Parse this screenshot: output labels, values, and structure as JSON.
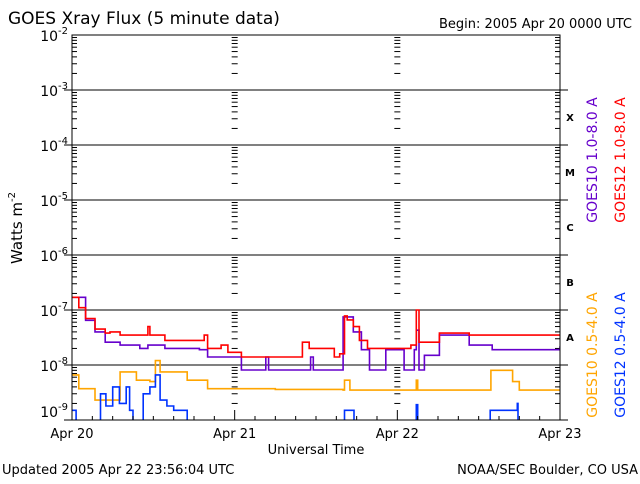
{
  "chart_data": {
    "type": "line",
    "title": "GOES Xray Flux (5 minute data)",
    "begin_label": "Begin:  2005 Apr 20 0000 UTC",
    "xlabel": "Universal Time",
    "ylabel_base": "Watts m",
    "ylabel_exp": "-2",
    "y_scale": "log",
    "ylim": [
      1e-09,
      0.01
    ],
    "xlim_hours": [
      0,
      72
    ],
    "y_ticks": [
      {
        "exp": "-2",
        "value": 0.01
      },
      {
        "exp": "-3",
        "value": 0.001
      },
      {
        "exp": "-4",
        "value": 0.0001
      },
      {
        "exp": "-5",
        "value": 1e-05
      },
      {
        "exp": "-6",
        "value": 1e-06
      },
      {
        "exp": "-7",
        "value": 1e-07
      },
      {
        "exp": "-8",
        "value": 1e-08
      },
      {
        "exp": "-9",
        "value": 1e-09
      }
    ],
    "x_ticks": [
      {
        "label": "Apr 20",
        "hour": 0
      },
      {
        "label": "Apr 21",
        "hour": 24
      },
      {
        "label": "Apr 22",
        "hour": 48
      },
      {
        "label": "Apr 23",
        "hour": 72
      }
    ],
    "flare_classes": [
      {
        "label": "X",
        "value": 0.00032
      },
      {
        "label": "M",
        "value": 3.2e-05
      },
      {
        "label": "C",
        "value": 3.2e-06
      },
      {
        "label": "B",
        "value": 3.2e-07
      },
      {
        "label": "A",
        "value": 3.2e-08
      }
    ],
    "grid": "horizontal lines at each decade",
    "legend_placement": "right, rotated",
    "series": [
      {
        "name": "GOES10 1.0-8.0 A",
        "color": "#6600cc",
        "points": [
          [
            0,
            1.7e-07
          ],
          [
            2,
            6.5e-08
          ],
          [
            3.4,
            4e-08
          ],
          [
            4.9,
            2.6e-08
          ],
          [
            7.1,
            2.3e-08
          ],
          [
            10,
            2e-08
          ],
          [
            11.2,
            2.3e-08
          ],
          [
            13.7,
            2e-08
          ],
          [
            18.8,
            1.9e-08
          ],
          [
            20,
            1.4e-08
          ],
          [
            24,
            1.4e-08
          ],
          [
            25,
            8.1e-09
          ],
          [
            28.4,
            8.1e-09
          ],
          [
            28.6,
            1.4e-08
          ],
          [
            29,
            8.1e-09
          ],
          [
            35,
            8.1e-09
          ],
          [
            35.2,
            1.4e-08
          ],
          [
            35.6,
            8.1e-09
          ],
          [
            39.3,
            8.1e-09
          ],
          [
            40,
            7.5e-08
          ],
          [
            41.5,
            4e-08
          ],
          [
            42.7,
            1.9e-08
          ],
          [
            43.9,
            8.1e-09
          ],
          [
            46.1,
            8.1e-09
          ],
          [
            46.3,
            1.9e-08
          ],
          [
            48.3,
            1.9e-08
          ],
          [
            49,
            8.1e-09
          ],
          [
            50.5,
            1.9e-08
          ],
          [
            50.8,
            4.3e-08
          ],
          [
            51.2,
            8.1e-09
          ],
          [
            52,
            1.5e-08
          ],
          [
            54.2,
            3.5e-08
          ],
          [
            58.6,
            2.3e-08
          ],
          [
            61.5,
            2.3e-08
          ],
          [
            62,
            1.9e-08
          ],
          [
            72,
            2.2e-08
          ]
        ]
      },
      {
        "name": "GOES12 1.0-8.0 A",
        "color": "#ff0000",
        "points": [
          [
            0,
            1.7e-07
          ],
          [
            1,
            1.1e-07
          ],
          [
            2,
            7e-08
          ],
          [
            3.4,
            4.5e-08
          ],
          [
            4.9,
            3.8e-08
          ],
          [
            5.6,
            4e-08
          ],
          [
            7.1,
            3.5e-08
          ],
          [
            11,
            3.5e-08
          ],
          [
            11.2,
            5e-08
          ],
          [
            11.5,
            3.5e-08
          ],
          [
            13.7,
            2.8e-08
          ],
          [
            18.8,
            2.8e-08
          ],
          [
            19.5,
            3.5e-08
          ],
          [
            20,
            2e-08
          ],
          [
            22,
            2.3e-08
          ],
          [
            23,
            1.7e-08
          ],
          [
            24,
            1.7e-08
          ],
          [
            25,
            1.4e-08
          ],
          [
            33.6,
            1.4e-08
          ],
          [
            34,
            2.6e-08
          ],
          [
            35,
            2e-08
          ],
          [
            38.7,
            1.4e-08
          ],
          [
            39.5,
            1.6e-08
          ],
          [
            40.2,
            7.8e-08
          ],
          [
            40.6,
            6.6e-08
          ],
          [
            41.5,
            5e-08
          ],
          [
            42.4,
            2.8e-08
          ],
          [
            43.6,
            2e-08
          ],
          [
            48.3,
            2e-08
          ],
          [
            50,
            2.3e-08
          ],
          [
            50.8,
            1e-07
          ],
          [
            51.2,
            2.6e-08
          ],
          [
            52,
            2.6e-08
          ],
          [
            54.2,
            3.8e-08
          ],
          [
            58.6,
            3.5e-08
          ],
          [
            72,
            3.5e-08
          ]
        ]
      },
      {
        "name": "GOES10 0.5-4.0 A",
        "color": "#ffa500",
        "points": [
          [
            0,
            6.6e-09
          ],
          [
            1,
            3.7e-09
          ],
          [
            3,
            3.7e-09
          ],
          [
            3.4,
            2.3e-09
          ],
          [
            6.5,
            2.3e-09
          ],
          [
            7.1,
            7.5e-09
          ],
          [
            9,
            7.5e-09
          ],
          [
            9.5,
            5.3e-09
          ],
          [
            11.5,
            5e-09
          ],
          [
            12.3,
            1.2e-08
          ],
          [
            13,
            7.5e-09
          ],
          [
            16.5,
            7.5e-09
          ],
          [
            17,
            5.3e-09
          ],
          [
            19,
            5.3e-09
          ],
          [
            20,
            3.7e-09
          ],
          [
            30,
            3.6e-09
          ],
          [
            40,
            3.5e-09
          ],
          [
            40.2,
            5.3e-09
          ],
          [
            41,
            3.5e-09
          ],
          [
            50.7,
            3.5e-09
          ],
          [
            50.8,
            5.3e-09
          ],
          [
            51,
            3.5e-09
          ],
          [
            61.5,
            3.5e-09
          ],
          [
            61.8,
            8e-09
          ],
          [
            63,
            8e-09
          ],
          [
            65,
            5e-09
          ],
          [
            66,
            3.5e-09
          ],
          [
            72,
            3.5e-09
          ]
        ]
      },
      {
        "name": "GOES12 0.5-4.0 A",
        "color": "#0033ff",
        "points": [
          [
            0,
            1.5e-09
          ],
          [
            0.6,
            5e-10
          ],
          [
            4,
            5e-10
          ],
          [
            4.2,
            3e-09
          ],
          [
            5,
            1.8e-09
          ],
          [
            6,
            4e-09
          ],
          [
            7,
            2e-09
          ],
          [
            8,
            4e-09
          ],
          [
            8.5,
            1.5e-09
          ],
          [
            9,
            5e-10
          ],
          [
            10.2,
            5e-10
          ],
          [
            10.5,
            3e-09
          ],
          [
            11.5,
            4e-09
          ],
          [
            12.3,
            6.6e-09
          ],
          [
            13,
            2.3e-09
          ],
          [
            14,
            1.8e-09
          ],
          [
            15,
            1.5e-09
          ],
          [
            16.5,
            1.5e-09
          ],
          [
            17,
            5e-10
          ],
          [
            40,
            5e-10
          ],
          [
            40.2,
            1.5e-09
          ],
          [
            41.5,
            1.5e-09
          ],
          [
            41.6,
            5e-10
          ],
          [
            50.7,
            5e-10
          ],
          [
            50.8,
            1.9e-09
          ],
          [
            51,
            5e-10
          ],
          [
            61.5,
            5e-10
          ],
          [
            61.7,
            1.5e-09
          ],
          [
            65.5,
            1.5e-09
          ],
          [
            65.7,
            2e-09
          ],
          [
            65.8,
            5e-10
          ],
          [
            72,
            5e-10
          ]
        ]
      }
    ]
  },
  "footer": {
    "updated": "Updated 2005 Apr 22 23:56:04 UTC",
    "credit": "NOAA/SEC Boulder, CO USA"
  }
}
